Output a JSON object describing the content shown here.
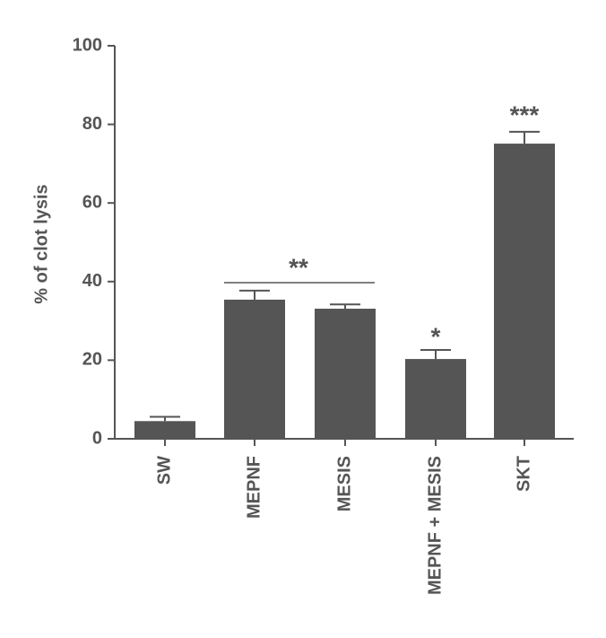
{
  "chart_data": {
    "type": "bar",
    "y_label": "% of clot lysis",
    "categories": [
      "SW",
      "MEPNF",
      "MESIS",
      "MEPNF + MESIS",
      "SKT"
    ],
    "values": [
      4.5,
      35.4,
      33.1,
      20.3,
      75.1
    ],
    "errors": [
      1.1,
      2.3,
      1.1,
      2.3,
      3.0
    ],
    "color": "#555555",
    "ylim": [
      0,
      100
    ],
    "yticks": [
      0,
      20,
      40,
      60,
      80,
      100
    ],
    "annotations": [
      "**",
      "*",
      "***"
    ]
  }
}
